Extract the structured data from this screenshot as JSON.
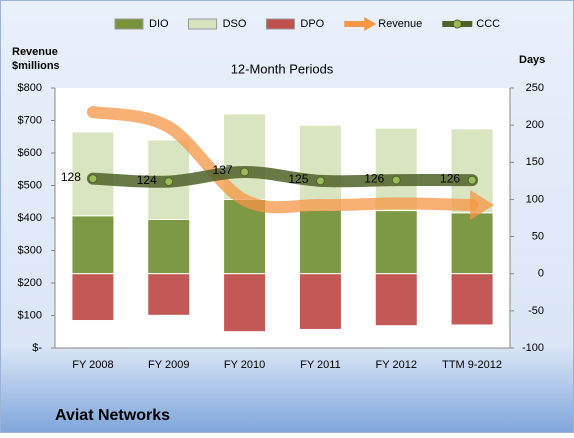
{
  "chart_data": {
    "type": "stacked-bar-line",
    "title": "12-Month Periods",
    "footer": "Aviat Networks",
    "y_label": "Revenue\n$millions",
    "y2_label": "Days",
    "categories": [
      "FY 2008",
      "FY 2009",
      "FY 2010",
      "FY 2011",
      "FY 2012",
      "TTM 9-2012"
    ],
    "ylim": [
      0,
      800
    ],
    "yticks": [
      {
        "value": 0,
        "label": "$-"
      },
      {
        "value": 100,
        "label": "$100"
      },
      {
        "value": 200,
        "label": "$200"
      },
      {
        "value": 300,
        "label": "$300"
      },
      {
        "value": 400,
        "label": "$400"
      },
      {
        "value": 500,
        "label": "$500"
      },
      {
        "value": 600,
        "label": "$600"
      },
      {
        "value": 700,
        "label": "$700"
      },
      {
        "value": 800,
        "label": "$800"
      }
    ],
    "y2lim": [
      -100,
      250
    ],
    "y2ticks": [
      -100,
      -50,
      0,
      50,
      100,
      150,
      200,
      250
    ],
    "series": [
      {
        "name": "DIO",
        "color": "#77933c",
        "kind": "bar",
        "axis": "y2",
        "values": [
          78,
          73,
          100,
          86,
          85,
          82
        ]
      },
      {
        "name": "DSO",
        "color": "#d7e4bd",
        "kind": "bar",
        "axis": "y2",
        "values": [
          113,
          107,
          115,
          114,
          111,
          113
        ]
      },
      {
        "name": "DPO",
        "color": "#c0504d",
        "kind": "bar",
        "axis": "y2",
        "values": [
          -63,
          -56,
          -78,
          -75,
          -70,
          -69
        ]
      },
      {
        "name": "Revenue",
        "color": "#f79646",
        "kind": "arrow",
        "values": [
          726,
          680,
          455,
          440,
          445,
          440
        ]
      },
      {
        "name": "CCC",
        "color": "#4f6228",
        "kind": "line",
        "axis": "y2",
        "values": [
          128,
          124,
          137,
          125,
          126,
          126
        ]
      }
    ]
  }
}
